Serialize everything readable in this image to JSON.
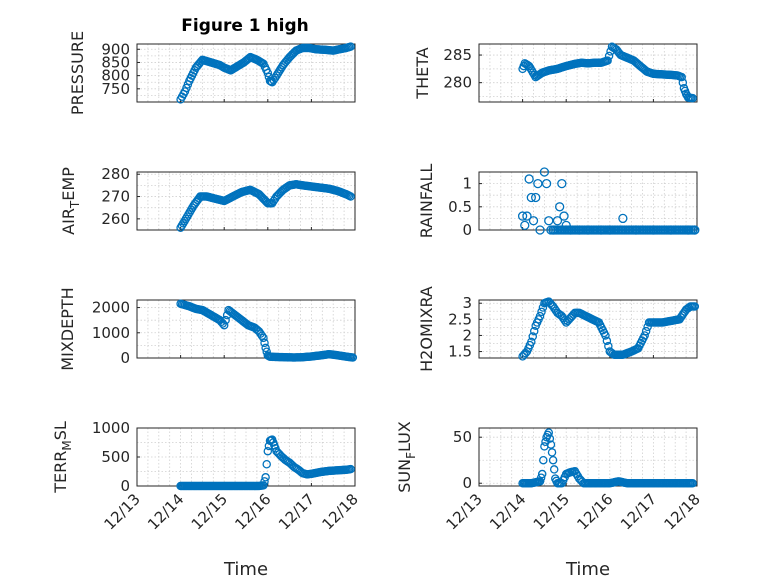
{
  "title": "Figure 1 high",
  "xlabel": "Time",
  "x_ticks": [
    "12/13",
    "12/14",
    "12/15",
    "12/16",
    "12/17",
    "12/18"
  ],
  "marker_color": "#0072BD",
  "chart_data": [
    {
      "type": "scatter",
      "ylabel": "PRESSURE",
      "xlim": [
        13,
        18
      ],
      "ylim": [
        700,
        920
      ],
      "yticks": [
        750,
        800,
        850,
        900
      ],
      "x": [
        14.0,
        14.1,
        14.2,
        14.35,
        14.5,
        14.7,
        14.9,
        15.0,
        15.15,
        15.3,
        15.45,
        15.6,
        15.75,
        15.9,
        16.0,
        16.05,
        16.1,
        16.2,
        16.35,
        16.5,
        16.65,
        16.8,
        16.95,
        17.1,
        17.3,
        17.5,
        17.65,
        17.8,
        17.9
      ],
      "y": [
        710,
        740,
        780,
        830,
        860,
        850,
        840,
        830,
        820,
        835,
        850,
        870,
        860,
        845,
        810,
        780,
        775,
        800,
        840,
        870,
        895,
        905,
        905,
        900,
        898,
        895,
        900,
        905,
        910
      ]
    },
    {
      "type": "scatter",
      "ylabel": "THETA",
      "xlim": [
        13,
        18
      ],
      "ylim": [
        276.5,
        287
      ],
      "yticks": [
        280,
        285
      ],
      "x": [
        14.0,
        14.05,
        14.15,
        14.3,
        14.45,
        14.6,
        14.8,
        15.0,
        15.2,
        15.35,
        15.5,
        15.65,
        15.8,
        15.95,
        16.05,
        16.15,
        16.25,
        16.4,
        16.55,
        16.7,
        16.85,
        17.0,
        17.2,
        17.4,
        17.55,
        17.65,
        17.7,
        17.75,
        17.8,
        17.9
      ],
      "y": [
        282.5,
        283.5,
        283,
        281,
        281.8,
        282.2,
        282.5,
        283,
        283.4,
        283.6,
        283.5,
        283.6,
        283.6,
        284,
        286.5,
        286,
        285,
        284.5,
        284,
        283,
        282,
        281.6,
        281.5,
        281.4,
        281.3,
        281,
        279,
        278,
        277.3,
        277.2
      ]
    },
    {
      "type": "scatter",
      "ylabel": "AIR_TEMP",
      "xlim": [
        13,
        18
      ],
      "ylim": [
        255,
        281
      ],
      "yticks": [
        260,
        270,
        280
      ],
      "x": [
        14.0,
        14.15,
        14.3,
        14.45,
        14.6,
        14.8,
        15.0,
        15.2,
        15.4,
        15.6,
        15.8,
        15.95,
        16.0,
        16.1,
        16.2,
        16.35,
        16.5,
        16.65,
        16.8,
        17.0,
        17.2,
        17.4,
        17.6,
        17.8,
        17.9
      ],
      "y": [
        256,
        261,
        266,
        270,
        270,
        269,
        268,
        270,
        272,
        273,
        271,
        268,
        267,
        267,
        270,
        273,
        275,
        275.5,
        275,
        274.5,
        274,
        273.5,
        272.5,
        271,
        270
      ]
    },
    {
      "type": "scatter",
      "ylabel": "RAINFALL",
      "xlim": [
        13,
        18
      ],
      "ylim": [
        0,
        1.25
      ],
      "yticks": [
        0,
        0.5,
        1
      ],
      "x": [
        14.0,
        14.05,
        14.1,
        14.15,
        14.2,
        14.25,
        14.3,
        14.35,
        14.4,
        14.5,
        14.55,
        14.6,
        14.65,
        14.7,
        14.8,
        14.85,
        14.9,
        14.95,
        15.0,
        15.1,
        15.3,
        15.5,
        15.8,
        16.0,
        16.3,
        16.6,
        17.0,
        17.4,
        17.8,
        17.95
      ],
      "y": [
        0.3,
        0.1,
        0.3,
        1.1,
        0.7,
        0.2,
        0.7,
        1.0,
        0.0,
        1.3,
        1.0,
        0.2,
        0.0,
        0.0,
        0.2,
        0.5,
        1.0,
        0.3,
        0.1,
        0.0,
        0.0,
        0.0,
        0.0,
        0.0,
        0.25,
        0.0,
        0.0,
        0.0,
        0.0,
        0.0
      ]
    },
    {
      "type": "scatter",
      "ylabel": "MIXDEPTH",
      "xlim": [
        13,
        18
      ],
      "ylim": [
        0,
        2300
      ],
      "yticks": [
        0,
        1000,
        2000
      ],
      "x": [
        14.0,
        14.1,
        14.2,
        14.35,
        14.5,
        14.7,
        14.9,
        15.0,
        15.1,
        15.25,
        15.4,
        15.55,
        15.7,
        15.8,
        15.9,
        15.95,
        16.0,
        16.05,
        16.2,
        16.4,
        16.6,
        16.8,
        17.0,
        17.2,
        17.4,
        17.55,
        17.7,
        17.85,
        17.95
      ],
      "y": [
        2150,
        2100,
        2050,
        1950,
        1900,
        1700,
        1500,
        1300,
        1900,
        1700,
        1500,
        1300,
        1200,
        1050,
        800,
        400,
        100,
        50,
        40,
        30,
        20,
        30,
        60,
        100,
        150,
        120,
        80,
        40,
        20
      ]
    },
    {
      "type": "scatter",
      "ylabel": "H2OMIXRA",
      "xlim": [
        13,
        18
      ],
      "ylim": [
        1.3,
        3.1
      ],
      "yticks": [
        1.5,
        2,
        2.5,
        3
      ],
      "x": [
        14.0,
        14.1,
        14.2,
        14.3,
        14.4,
        14.5,
        14.6,
        14.7,
        14.8,
        14.9,
        15.0,
        15.1,
        15.2,
        15.3,
        15.45,
        15.6,
        15.75,
        15.9,
        16.0,
        16.1,
        16.3,
        16.5,
        16.65,
        16.8,
        16.9,
        17.0,
        17.2,
        17.4,
        17.6,
        17.75,
        17.85,
        17.95
      ],
      "y": [
        1.35,
        1.5,
        1.8,
        2.3,
        2.6,
        3.0,
        3.05,
        2.9,
        2.7,
        2.6,
        2.4,
        2.55,
        2.7,
        2.7,
        2.6,
        2.5,
        2.4,
        2.0,
        1.5,
        1.4,
        1.4,
        1.5,
        1.6,
        2.0,
        2.4,
        2.4,
        2.4,
        2.45,
        2.5,
        2.8,
        2.9,
        2.9
      ]
    },
    {
      "type": "scatter",
      "ylabel": "TERR_MSL",
      "xlim": [
        13,
        18
      ],
      "ylim": [
        0,
        1000
      ],
      "yticks": [
        0,
        500,
        1000
      ],
      "x": [
        14.0,
        14.2,
        14.4,
        14.6,
        14.8,
        15.0,
        15.2,
        15.4,
        15.6,
        15.8,
        15.9,
        15.95,
        16.0,
        16.05,
        16.1,
        16.15,
        16.2,
        16.3,
        16.4,
        16.5,
        16.6,
        16.7,
        16.8,
        16.9,
        17.0,
        17.2,
        17.4,
        17.6,
        17.8,
        17.9
      ],
      "y": [
        0,
        0,
        0,
        0,
        0,
        0,
        0,
        0,
        0,
        0,
        10,
        150,
        600,
        780,
        800,
        700,
        600,
        520,
        450,
        400,
        330,
        280,
        220,
        200,
        210,
        240,
        260,
        270,
        280,
        290
      ]
    },
    {
      "type": "scatter",
      "ylabel": "SUN_FLUX",
      "xlim": [
        13,
        18
      ],
      "ylim": [
        -3,
        60
      ],
      "yticks": [
        0,
        50
      ],
      "x": [
        14.0,
        14.2,
        14.4,
        14.45,
        14.5,
        14.55,
        14.6,
        14.65,
        14.7,
        14.75,
        14.8,
        14.9,
        15.0,
        15.1,
        15.2,
        15.3,
        15.4,
        15.5,
        15.7,
        16.0,
        16.2,
        16.4,
        16.6,
        16.8,
        17.0,
        17.3,
        17.6,
        17.9
      ],
      "y": [
        0,
        0,
        2,
        10,
        40,
        50,
        55,
        42,
        25,
        5,
        0,
        0,
        10,
        12,
        13,
        5,
        0,
        0,
        0,
        0,
        2,
        0,
        0,
        0,
        0,
        0,
        0,
        0
      ]
    }
  ]
}
